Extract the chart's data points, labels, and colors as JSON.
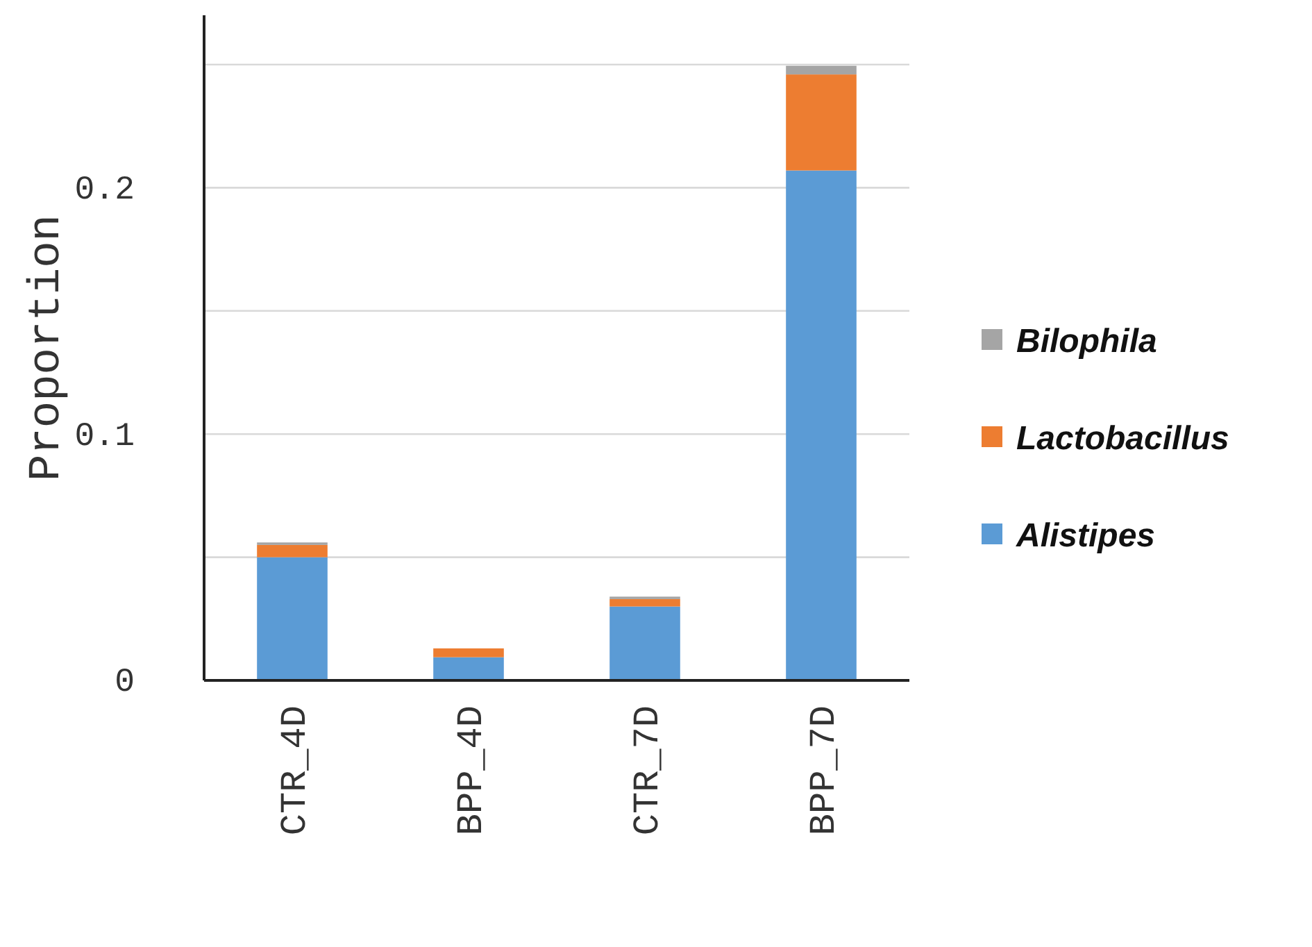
{
  "chart_data": {
    "type": "bar",
    "stacked": true,
    "ylabel": "Proportion",
    "categories": [
      "CTR_4D",
      "BPP_4D",
      "CTR_7D",
      "BPP_7D"
    ],
    "series": [
      {
        "name": "Alistipes",
        "color": "#5b9bd5",
        "values": [
          0.05,
          0.0094,
          0.03,
          0.207
        ]
      },
      {
        "name": "Lactobacillus",
        "color": "#ed7d31",
        "values": [
          0.005,
          0.0036,
          0.003,
          0.039
        ]
      },
      {
        "name": "Bilophila",
        "color": "#a5a5a5",
        "values": [
          0.001,
          null,
          0.001,
          0.0035
        ]
      }
    ],
    "ylim": [
      0,
      0.27
    ],
    "yticks": [
      0,
      {
        "value": 0.05,
        "label": null
      },
      0.1,
      {
        "value": 0.15,
        "label": null
      },
      0.2,
      {
        "value": 0.25,
        "label": null
      }
    ],
    "grid": "y",
    "legend": "right"
  }
}
